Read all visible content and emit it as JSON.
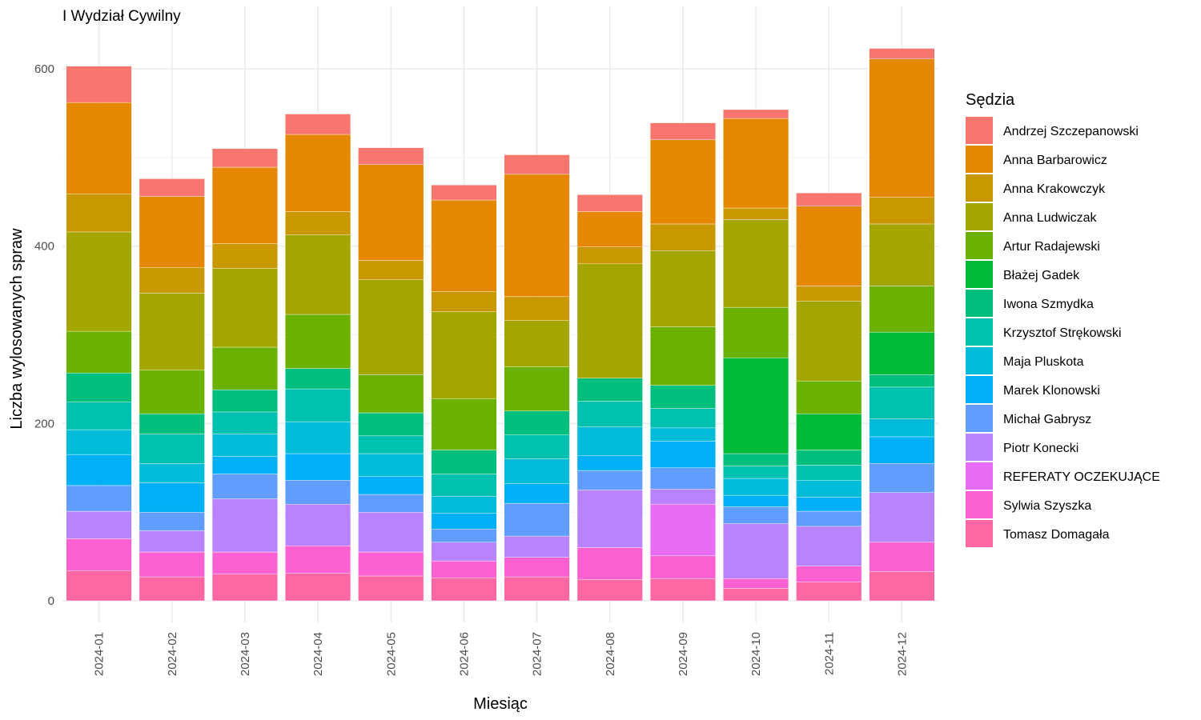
{
  "chart_data": {
    "type": "bar",
    "stacked": true,
    "title": "I Wydział Cywilny",
    "xlabel": "Miesiąc",
    "ylabel": "Liczba wylosowanych spraw",
    "ylim": [
      0,
      630
    ],
    "yticks": [
      0,
      200,
      400,
      600
    ],
    "grid": true,
    "legend_title": "Sędzia",
    "legend_position": "right",
    "categories": [
      "2024-01",
      "2024-02",
      "2024-03",
      "2024-04",
      "2024-05",
      "2024-06",
      "2024-07",
      "2024-08",
      "2024-09",
      "2024-10",
      "2024-11",
      "2024-12"
    ],
    "series": [
      {
        "name": "Andrzej Szczepanowski",
        "color": "#F8766D",
        "values": [
          41,
          20,
          21,
          23,
          19,
          17,
          22,
          19,
          19,
          10,
          15,
          12
        ]
      },
      {
        "name": "Anna Barbarowicz",
        "color": "#E58700",
        "values": [
          103,
          80,
          86,
          87,
          108,
          103,
          138,
          40,
          95,
          101,
          90,
          156
        ]
      },
      {
        "name": "Anna Krakowczyk",
        "color": "#C99800",
        "values": [
          43,
          29,
          28,
          26,
          22,
          23,
          27,
          19,
          30,
          13,
          17,
          30
        ]
      },
      {
        "name": "Anna Ludwiczak",
        "color": "#A3A500",
        "values": [
          112,
          87,
          89,
          90,
          107,
          98,
          52,
          129,
          86,
          99,
          90,
          70
        ]
      },
      {
        "name": "Artur Radajewski",
        "color": "#6BB100",
        "values": [
          47,
          49,
          48,
          61,
          43,
          58,
          50,
          0,
          66,
          57,
          37,
          52
        ]
      },
      {
        "name": "Błażej Gadek",
        "color": "#00BA38",
        "values": [
          0,
          0,
          0,
          0,
          0,
          0,
          0,
          0,
          0,
          108,
          41,
          48
        ]
      },
      {
        "name": "Iwona Szmydka",
        "color": "#00BF7D",
        "values": [
          33,
          23,
          25,
          23,
          26,
          27,
          27,
          26,
          26,
          14,
          17,
          14
        ]
      },
      {
        "name": "Krzysztof Strękowski",
        "color": "#00C0AF",
        "values": [
          31,
          33,
          25,
          37,
          20,
          25,
          27,
          29,
          22,
          14,
          17,
          36
        ]
      },
      {
        "name": "Maja Pluskota",
        "color": "#00BCD8",
        "values": [
          28,
          22,
          25,
          36,
          26,
          19,
          28,
          32,
          15,
          19,
          19,
          20
        ]
      },
      {
        "name": "Marek Klonowski",
        "color": "#00B0F6",
        "values": [
          35,
          33,
          20,
          30,
          20,
          18,
          22,
          17,
          30,
          13,
          16,
          30
        ]
      },
      {
        "name": "Michał Gabrysz",
        "color": "#619CFF",
        "values": [
          29,
          21,
          28,
          27,
          20,
          15,
          37,
          22,
          24,
          19,
          17,
          33
        ]
      },
      {
        "name": "Piotr Konecki",
        "color": "#B983FF",
        "values": [
          31,
          24,
          60,
          47,
          45,
          21,
          24,
          65,
          17,
          62,
          45,
          56
        ]
      },
      {
        "name": "REFERATY OCZEKUJĄCE",
        "color": "#E76BF3",
        "values": [
          0,
          0,
          0,
          0,
          0,
          0,
          0,
          0,
          58,
          0,
          0,
          0
        ]
      },
      {
        "name": "Sylwia Szyszka",
        "color": "#FD61D1",
        "values": [
          36,
          28,
          25,
          31,
          27,
          19,
          22,
          36,
          26,
          11,
          18,
          33
        ]
      },
      {
        "name": "Tomasz Domagała",
        "color": "#FF67A4",
        "values": [
          34,
          27,
          30,
          31,
          28,
          26,
          27,
          24,
          25,
          14,
          21,
          33
        ]
      }
    ]
  }
}
